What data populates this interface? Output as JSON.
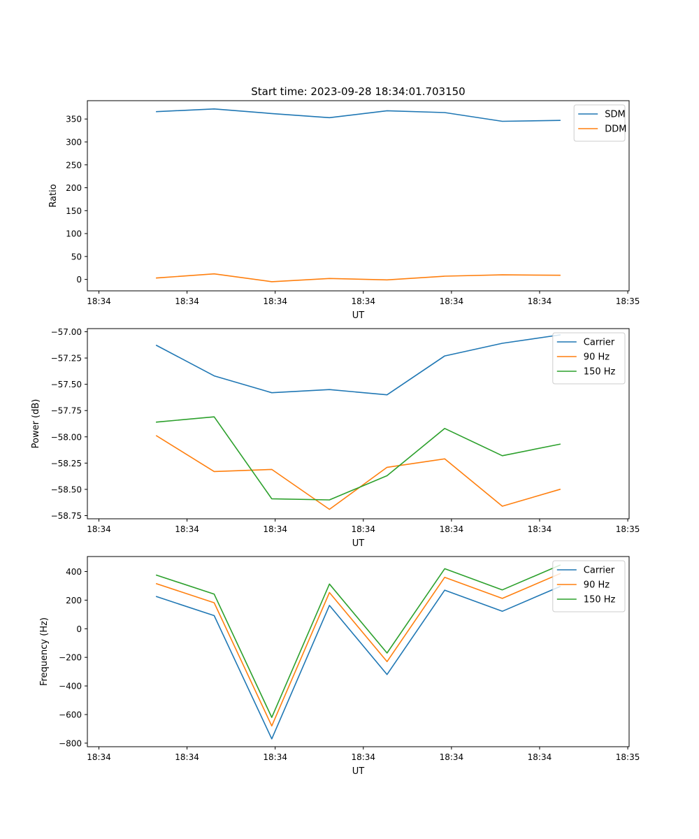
{
  "figure": {
    "title": "Start time: 2023-09-28 18:34:01.703150"
  },
  "chart_data": [
    {
      "type": "line",
      "ylabel": "Ratio",
      "xlabel": "UT",
      "x": [
        1,
        2,
        3,
        4,
        5,
        6,
        7,
        8
      ],
      "x_ticks": [
        0,
        1.5294,
        3.0588,
        4.5882,
        6.1176,
        7.6471,
        9.1765
      ],
      "x_tick_labels": [
        "18:34",
        "18:34",
        "18:34",
        "18:34",
        "18:34",
        "18:34",
        "18:35"
      ],
      "xlim": [
        -0.2,
        9.2
      ],
      "y_ticks": [
        0,
        50,
        100,
        150,
        200,
        250,
        300,
        350
      ],
      "y_tick_labels": [
        "0",
        "50",
        "100",
        "150",
        "200",
        "250",
        "300",
        "350"
      ],
      "ylim": [
        -25,
        390
      ],
      "legend_position": "top-right",
      "series": [
        {
          "name": "SDM",
          "color": "#1f77b4",
          "values": [
            366,
            372,
            362,
            353,
            368,
            364,
            345,
            347
          ]
        },
        {
          "name": "DDM",
          "color": "#ff7f0e",
          "values": [
            3,
            12,
            -5,
            2,
            -1,
            7,
            10,
            9
          ]
        }
      ]
    },
    {
      "type": "line",
      "ylabel": "Power (dB)",
      "xlabel": "UT",
      "x": [
        1,
        2,
        3,
        4,
        5,
        6,
        7,
        8
      ],
      "x_ticks": [
        0,
        1.5294,
        3.0588,
        4.5882,
        6.1176,
        7.6471,
        9.1765
      ],
      "x_tick_labels": [
        "18:34",
        "18:34",
        "18:34",
        "18:34",
        "18:34",
        "18:34",
        "18:35"
      ],
      "xlim": [
        -0.2,
        9.2
      ],
      "y_ticks": [
        -58.75,
        -58.5,
        -58.25,
        -58.0,
        -57.75,
        -57.5,
        -57.25,
        -57.0
      ],
      "y_tick_labels": [
        "−58.75",
        "−58.50",
        "−58.25",
        "−58.00",
        "−57.75",
        "−57.50",
        "−57.25",
        "−57.00"
      ],
      "ylim": [
        -58.78,
        -56.97
      ],
      "legend_position": "top-right",
      "series": [
        {
          "name": "Carrier",
          "color": "#1f77b4",
          "values": [
            -57.13,
            -57.42,
            -57.58,
            -57.55,
            -57.6,
            -57.23,
            -57.11,
            -57.03
          ]
        },
        {
          "name": "90 Hz",
          "color": "#ff7f0e",
          "values": [
            -57.99,
            -58.33,
            -58.31,
            -58.69,
            -58.29,
            -58.21,
            -58.66,
            -58.5
          ]
        },
        {
          "name": "150 Hz",
          "color": "#2ca02c",
          "values": [
            -57.86,
            -57.81,
            -58.59,
            -58.6,
            -58.37,
            -57.92,
            -58.18,
            -58.07
          ]
        }
      ]
    },
    {
      "type": "line",
      "ylabel": "Frequency (Hz)",
      "xlabel": "UT",
      "x": [
        1,
        2,
        3,
        4,
        5,
        6,
        7,
        8
      ],
      "x_ticks": [
        0,
        1.5294,
        3.0588,
        4.5882,
        6.1176,
        7.6471,
        9.1765
      ],
      "x_tick_labels": [
        "18:34",
        "18:34",
        "18:34",
        "18:34",
        "18:34",
        "18:34",
        "18:35"
      ],
      "xlim": [
        -0.2,
        9.2
      ],
      "y_ticks": [
        -800,
        -600,
        -400,
        -200,
        0,
        200,
        400
      ],
      "y_tick_labels": [
        "−800",
        "−600",
        "−400",
        "−200",
        "0",
        "200",
        "400"
      ],
      "ylim": [
        -825,
        505
      ],
      "legend_position": "top-right",
      "series": [
        {
          "name": "Carrier",
          "color": "#1f77b4",
          "values": [
            225,
            92,
            -770,
            163,
            -320,
            270,
            122,
            295
          ]
        },
        {
          "name": "90 Hz",
          "color": "#ff7f0e",
          "values": [
            315,
            182,
            -680,
            253,
            -230,
            360,
            212,
            385
          ]
        },
        {
          "name": "150 Hz",
          "color": "#2ca02c",
          "values": [
            375,
            242,
            -620,
            313,
            -170,
            420,
            272,
            445
          ]
        }
      ]
    }
  ]
}
